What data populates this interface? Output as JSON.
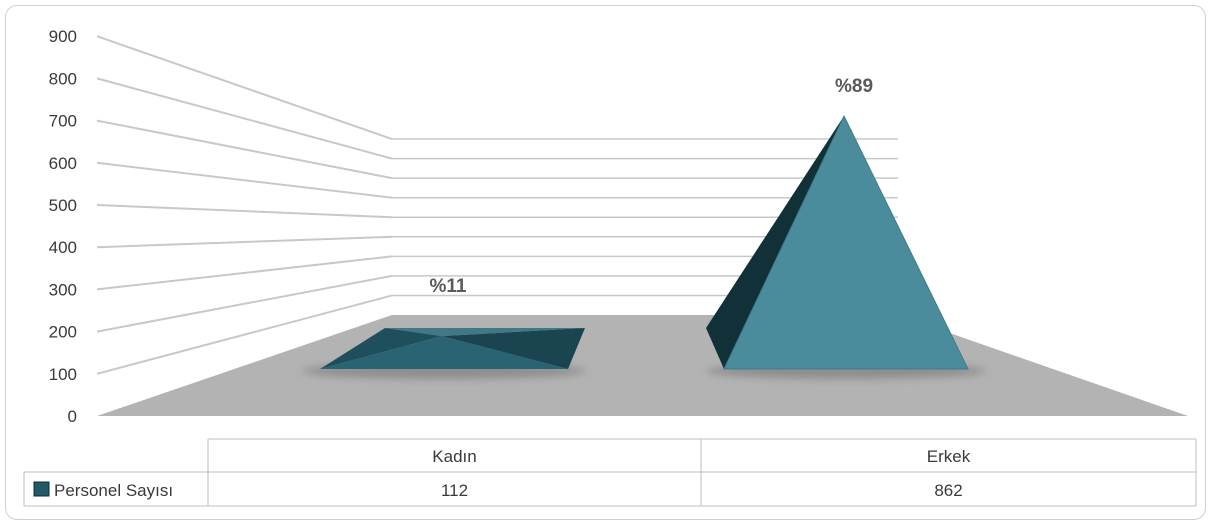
{
  "chart_data": {
    "type": "bar",
    "shape": "pyramid-3d",
    "title": "",
    "xlabel": "",
    "ylabel": "",
    "ylim": [
      0,
      900
    ],
    "yticks": [
      0,
      100,
      200,
      300,
      400,
      500,
      600,
      700,
      800,
      900
    ],
    "yticks_labels": [
      "0",
      "100",
      "200",
      "300",
      "400",
      "500",
      "600",
      "700",
      "800",
      "900"
    ],
    "categories": [
      "Kadın",
      "Erkek"
    ],
    "series": [
      {
        "name": "Personel Sayısı",
        "values": [
          112,
          862
        ],
        "values_labels": [
          "112",
          "862"
        ],
        "point_labels": [
          "%11",
          "%89"
        ],
        "color": "#215968"
      }
    ],
    "legend": "data-table-left",
    "grid": true,
    "colors": {
      "floor": "#b3b3b3",
      "pyramid_front": "#4a8c9b",
      "pyramid_dark": "#1d4a56",
      "pyramid_side": "#123038",
      "gridline": "#c8c8c8"
    }
  }
}
